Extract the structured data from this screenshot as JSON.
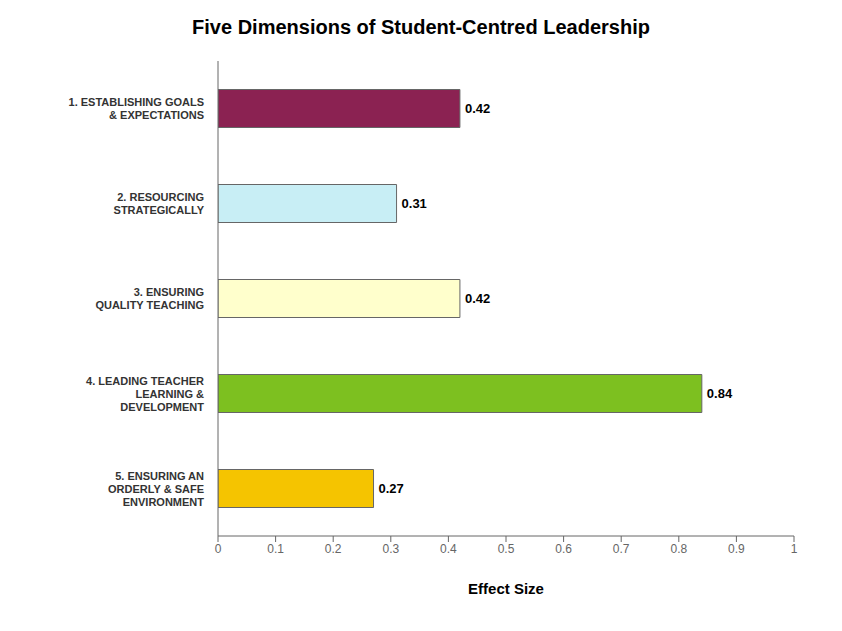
{
  "chart_data": {
    "type": "bar",
    "orientation": "horizontal",
    "title": "Five Dimensions of Student-Centred Leadership",
    "categories": [
      "1. ESTABLISHING GOALS\n& EXPECTATIONS",
      "2. RESOURCING\nSTRATEGICALLY",
      "3. ENSURING\nQUALITY TEACHING",
      "4. LEADING TEACHER\nLEARNING &\nDEVELOPMENT",
      "5. ENSURING AN\nORDERLY & SAFE\nENVIRONMENT"
    ],
    "values": [
      0.42,
      0.31,
      0.42,
      0.84,
      0.27
    ],
    "colors": [
      "#8B2252",
      "#C8EEF5",
      "#FFFFCC",
      "#7DC020",
      "#F5C400"
    ],
    "xlabel": "Effect Size",
    "xlim": [
      0,
      1.0
    ],
    "xticks": [
      0,
      0.1,
      0.2,
      0.3,
      0.4,
      0.5,
      0.6,
      0.7,
      0.8,
      0.9,
      1
    ],
    "grid": false,
    "data_labels": true
  }
}
